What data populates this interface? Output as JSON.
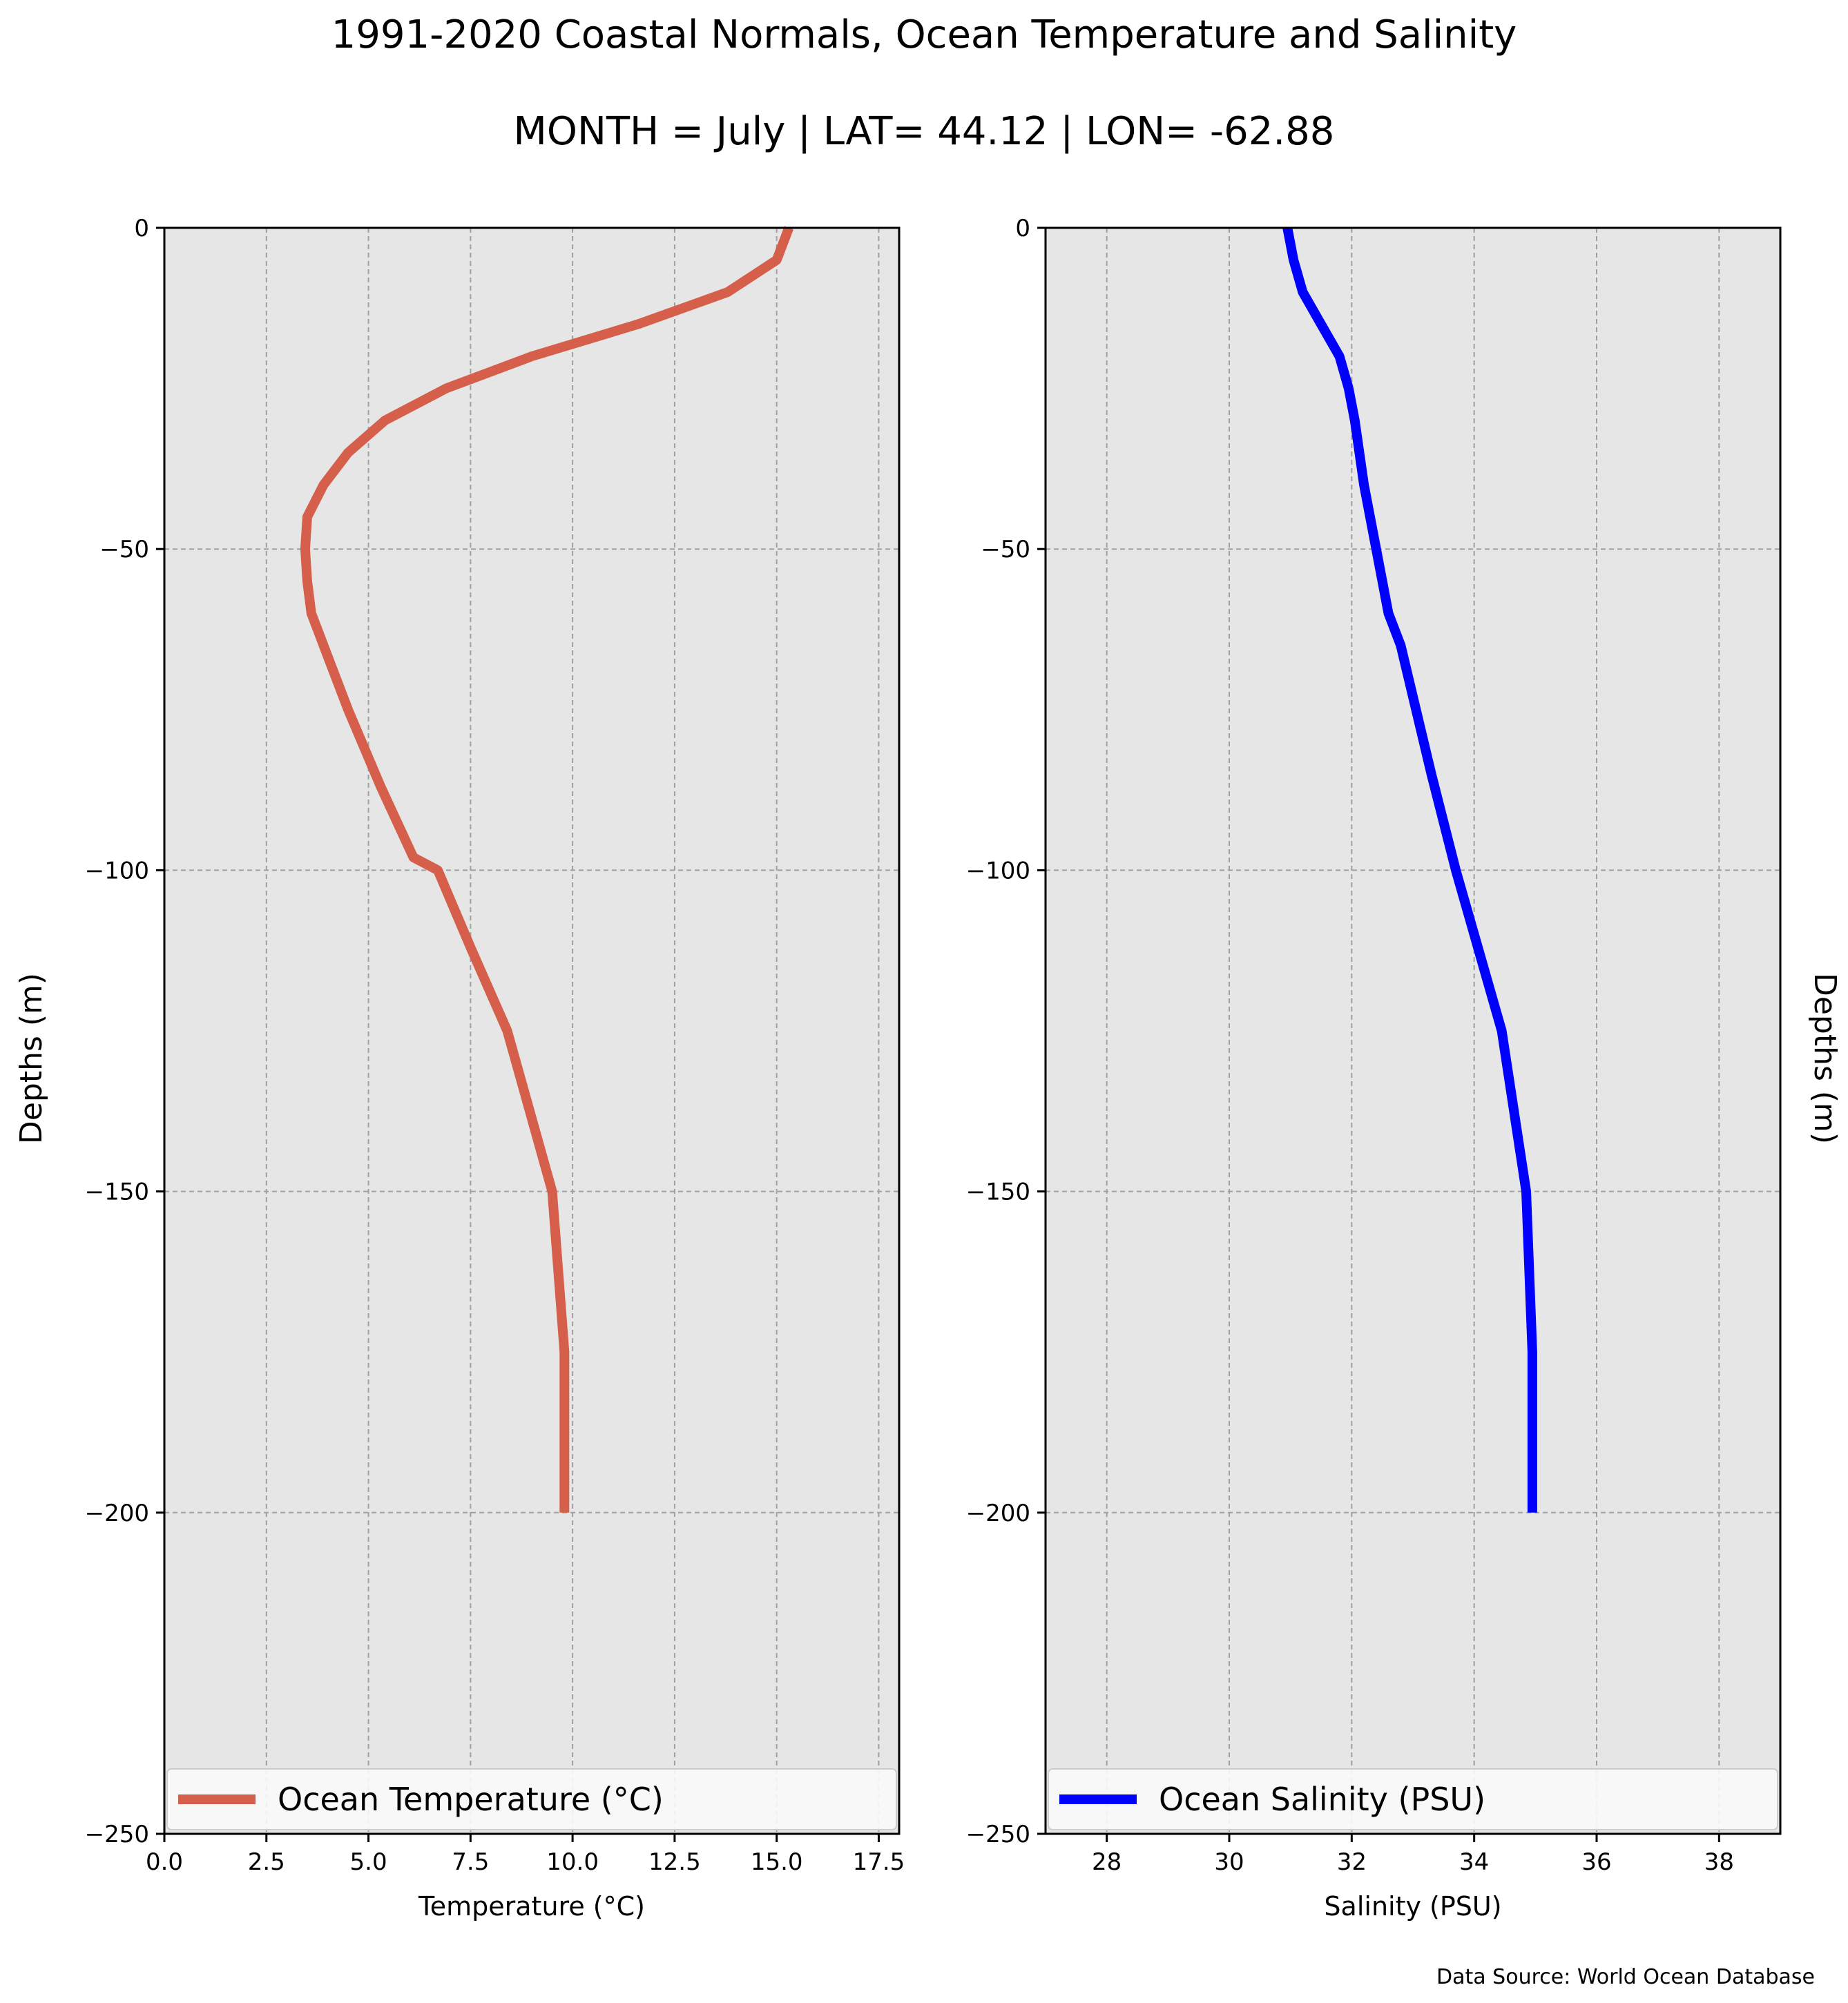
{
  "title": "1991-2020 Coastal Normals, Ocean Temperature and Salinity",
  "subtitle": "MONTH = July | LAT= 44.12 | LON= -62.88",
  "source": "Data Source: World Ocean Database",
  "colors": {
    "panel_bg": "#e6e6e6",
    "grid": "#a0a0a0",
    "temperature": "#d65f4b",
    "salinity": "#0000ff"
  },
  "chart_data": [
    {
      "type": "line",
      "xlabel": "Temperature (°C)",
      "ylabel": "Depths (m)",
      "ylabel_side": "left",
      "xlim": [
        0,
        18
      ],
      "ylim": [
        -250,
        0
      ],
      "xticks": [
        0,
        2.5,
        5,
        7.5,
        10,
        12.5,
        15,
        17.5
      ],
      "xtick_labels": [
        "0.0",
        "2.5",
        "5.0",
        "7.5",
        "10.0",
        "12.5",
        "15.0",
        "17.5"
      ],
      "yticks": [
        0,
        -50,
        -100,
        -150,
        -200,
        -250
      ],
      "ytick_labels": [
        "0",
        "−50",
        "−100",
        "−150",
        "−200",
        "−250"
      ],
      "grid": true,
      "legend_loc": "lower-left",
      "series": [
        {
          "name": "Ocean Temperature (°C)",
          "color": "#d65f4b",
          "x": [
            15.3,
            15.0,
            13.8,
            11.6,
            9.0,
            6.9,
            5.4,
            4.5,
            3.9,
            3.5,
            3.45,
            3.5,
            3.6,
            3.9,
            4.5,
            5.3,
            6.1,
            6.7,
            7.5,
            8.4,
            9.5,
            9.8,
            9.8
          ],
          "y": [
            0,
            -5,
            -10,
            -15,
            -20,
            -25,
            -30,
            -35,
            -40,
            -45,
            -50,
            -55,
            -60,
            -65,
            -75,
            -87,
            -98,
            -100,
            -112,
            -125,
            -150,
            -175,
            -200
          ]
        }
      ]
    },
    {
      "type": "line",
      "xlabel": "Salinity (PSU)",
      "ylabel": "Depths (m)",
      "ylabel_side": "right",
      "xlim": [
        27,
        39
      ],
      "ylim": [
        -250,
        0
      ],
      "xticks": [
        28,
        30,
        32,
        34,
        36,
        38
      ],
      "xtick_labels": [
        "28",
        "30",
        "32",
        "34",
        "36",
        "38"
      ],
      "yticks": [
        0,
        -50,
        -100,
        -150,
        -200,
        -250
      ],
      "ytick_labels": [
        "0",
        "−50",
        "−100",
        "−150",
        "−200",
        "−250"
      ],
      "grid": true,
      "legend_loc": "lower-left",
      "series": [
        {
          "name": "Ocean Salinity (PSU)",
          "color": "#0000ff",
          "x": [
            30.95,
            31.05,
            31.2,
            31.5,
            31.8,
            31.95,
            32.05,
            32.2,
            32.4,
            32.6,
            32.8,
            33.3,
            33.7,
            34.45,
            34.85,
            34.95,
            34.95
          ],
          "y": [
            0,
            -5,
            -10,
            -15,
            -20,
            -25,
            -30,
            -40,
            -50,
            -60,
            -65,
            -85,
            -100,
            -125,
            -150,
            -175,
            -200
          ]
        }
      ]
    }
  ]
}
